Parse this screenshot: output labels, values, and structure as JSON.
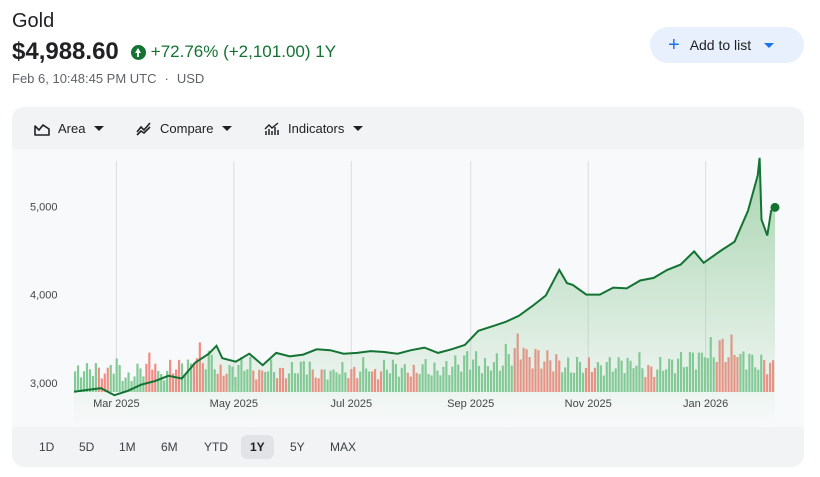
{
  "asset": {
    "name": "Gold",
    "price": "$4,988.60",
    "change": "+72.76% (+2,101.00) 1Y",
    "timestamp": "Feb 6, 10:48:45 PM UTC",
    "separator": "·",
    "currency": "USD"
  },
  "actions": {
    "add_to_list": "Add to list"
  },
  "toolbar": {
    "area": "Area",
    "compare": "Compare",
    "indicators": "Indicators"
  },
  "ranges": [
    "1D",
    "5D",
    "1M",
    "6M",
    "YTD",
    "1Y",
    "5Y",
    "MAX"
  ],
  "active_range": "1Y",
  "colors": {
    "line": "#137333",
    "area_top": "#8dc896",
    "volume_up": "#81c995",
    "volume_down": "#f28b82",
    "button_bg": "#e8f0fe",
    "accent": "#1a73e8"
  },
  "icons": {
    "area": "area-chart-icon",
    "compare": "compare-icon",
    "indicators": "indicators-icon",
    "plus": "plus-icon",
    "up_arrow": "arrow-up-circle-icon"
  },
  "chart_data": {
    "type": "area",
    "x_ticks": [
      "Mar 2025",
      "May 2025",
      "Jul 2025",
      "Sep 2025",
      "Nov 2025",
      "Jan 2026"
    ],
    "y_ticks": [
      "3,000",
      "4,000",
      "5,000"
    ],
    "ylim": [
      2500,
      5650
    ],
    "grid": "vertical",
    "series": [
      {
        "x": [
          "2025-02-07",
          "2025-02-14",
          "2025-02-21",
          "2025-02-28",
          "2025-03-07",
          "2025-03-14",
          "2025-03-21",
          "2025-03-28",
          "2025-04-04",
          "2025-04-11",
          "2025-04-18",
          "2025-04-22",
          "2025-04-25",
          "2025-05-02",
          "2025-05-09",
          "2025-05-16",
          "2025-05-23",
          "2025-05-30",
          "2025-06-06",
          "2025-06-13",
          "2025-06-20",
          "2025-06-27",
          "2025-07-04",
          "2025-07-11",
          "2025-07-18",
          "2025-07-25",
          "2025-08-01",
          "2025-08-08",
          "2025-08-15",
          "2025-08-22",
          "2025-08-29",
          "2025-09-05",
          "2025-09-12",
          "2025-09-19",
          "2025-09-26",
          "2025-10-03",
          "2025-10-10",
          "2025-10-17",
          "2025-10-21",
          "2025-10-24",
          "2025-10-31",
          "2025-11-07",
          "2025-11-14",
          "2025-11-21",
          "2025-11-28",
          "2025-12-05",
          "2025-12-12",
          "2025-12-19",
          "2025-12-26",
          "2025-12-31",
          "2026-01-09",
          "2026-01-16",
          "2026-01-23",
          "2026-01-28",
          "2026-01-29",
          "2026-01-30",
          "2026-02-02",
          "2026-02-04",
          "2026-02-06"
        ],
        "values": [
          2900,
          2920,
          2940,
          2860,
          2910,
          2980,
          3020,
          3080,
          3050,
          3230,
          3330,
          3420,
          3280,
          3240,
          3330,
          3200,
          3340,
          3300,
          3320,
          3380,
          3370,
          3330,
          3340,
          3360,
          3350,
          3330,
          3370,
          3400,
          3340,
          3380,
          3430,
          3590,
          3640,
          3690,
          3760,
          3870,
          3990,
          4280,
          4130,
          4110,
          4000,
          4000,
          4080,
          4070,
          4160,
          4190,
          4280,
          4340,
          4490,
          4360,
          4500,
          4600,
          4950,
          5350,
          5550,
          4850,
          4670,
          4950,
          4988.6
        ]
      }
    ],
    "volume": {
      "unit": "relative",
      "values": [
        0.55,
        0.6,
        0.5,
        0.7,
        0.4,
        0.6,
        0.8,
        0.45,
        0.65,
        0.7,
        1.0,
        0.9,
        0.55,
        0.6,
        0.7,
        0.5,
        0.65,
        0.55,
        0.6,
        0.7,
        0.45,
        0.5,
        0.6,
        0.55,
        0.7,
        0.5,
        0.65,
        0.6,
        0.55,
        0.7,
        0.6,
        0.65,
        0.75,
        0.85,
        0.7,
        0.8,
        1.0,
        1.2,
        0.9,
        0.85,
        0.8,
        0.7,
        0.75,
        0.7,
        0.65,
        0.7,
        0.75,
        0.8,
        0.6,
        0.7,
        0.75,
        0.8,
        0.9,
        1.1,
        1.2,
        1.15,
        0.9,
        0.75,
        0.7
      ],
      "up": [
        true,
        true,
        false,
        true,
        true,
        true,
        false,
        true,
        false,
        true,
        false,
        true,
        false,
        true,
        true,
        false,
        true,
        false,
        true,
        true,
        false,
        true,
        true,
        false,
        true,
        false,
        true,
        true,
        false,
        true,
        true,
        true,
        true,
        true,
        true,
        true,
        true,
        false,
        false,
        false,
        false,
        true,
        true,
        false,
        true,
        true,
        true,
        true,
        false,
        true,
        true,
        true,
        true,
        true,
        false,
        false,
        true,
        true,
        false
      ]
    }
  }
}
